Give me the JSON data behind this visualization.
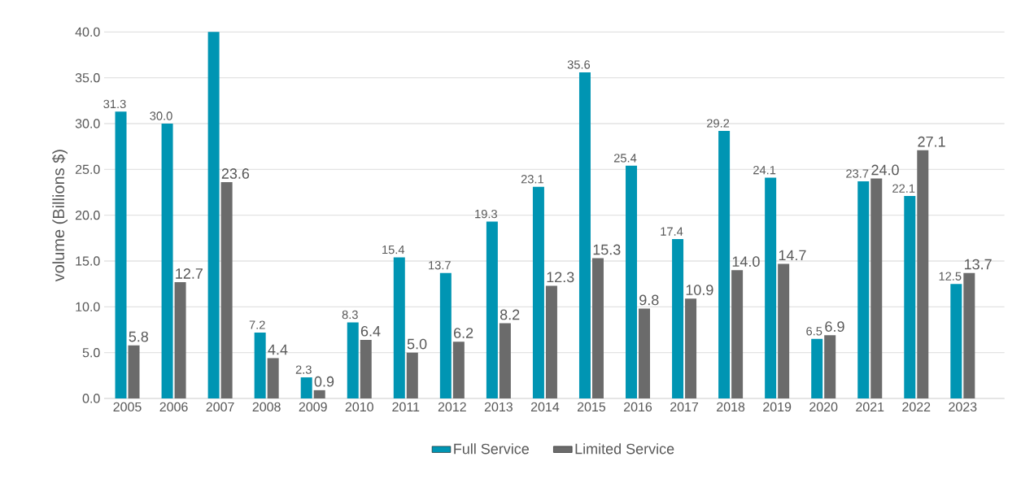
{
  "chart_data": {
    "type": "bar",
    "ylabel": "volume (Billions $)",
    "categories": [
      "2005",
      "2006",
      "2007",
      "2008",
      "2009",
      "2010",
      "2011",
      "2012",
      "2013",
      "2014",
      "2015",
      "2016",
      "2017",
      "2018",
      "2019",
      "2020",
      "2021",
      "2022",
      "2023"
    ],
    "series": [
      {
        "name": "Full Service",
        "color": "#0095b3",
        "values": [
          31.3,
          30.0,
          40.0,
          7.2,
          2.3,
          8.3,
          15.4,
          13.7,
          19.3,
          23.1,
          35.6,
          25.4,
          17.4,
          29.2,
          24.1,
          6.5,
          23.7,
          22.1,
          12.5
        ],
        "value_labels": [
          "31.3",
          "30.0",
          null,
          "7.2",
          "2.3",
          "8.3",
          "15.4",
          "13.7",
          "19.3",
          "23.1",
          "35.6",
          "25.4",
          "17.4",
          "29.2",
          "24.1",
          "6.5",
          "23.7",
          "22.1",
          "12.5"
        ]
      },
      {
        "name": "Limited Service",
        "color": "#6b6b6b",
        "values": [
          5.8,
          12.7,
          23.6,
          4.4,
          0.9,
          6.4,
          5.0,
          6.2,
          8.2,
          12.3,
          15.3,
          9.8,
          10.9,
          14.0,
          14.7,
          6.9,
          24.0,
          27.1,
          13.7
        ],
        "value_labels": [
          "5.8",
          "12.7",
          "23.6",
          "4.4",
          "0.9",
          "6.4",
          "5.0",
          "6.2",
          "8.2",
          "12.3",
          "15.3",
          "9.8",
          "10.9",
          "14.0",
          "14.7",
          "6.9",
          "24.0",
          "27.1",
          "13.7"
        ]
      }
    ],
    "ylim": [
      0,
      40
    ],
    "yticks": [
      {
        "value": 0,
        "label": "0.0"
      },
      {
        "value": 5,
        "label": "5.0"
      },
      {
        "value": 10,
        "label": "10.0"
      },
      {
        "value": 15,
        "label": "15.0"
      },
      {
        "value": 20,
        "label": "20.0"
      },
      {
        "value": 25,
        "label": "25.0"
      },
      {
        "value": 30,
        "label": "30.0"
      },
      {
        "value": 35,
        "label": "35.0"
      },
      {
        "value": 40,
        "label": "40.0"
      }
    ],
    "grid": "y",
    "legend": "bottom"
  }
}
